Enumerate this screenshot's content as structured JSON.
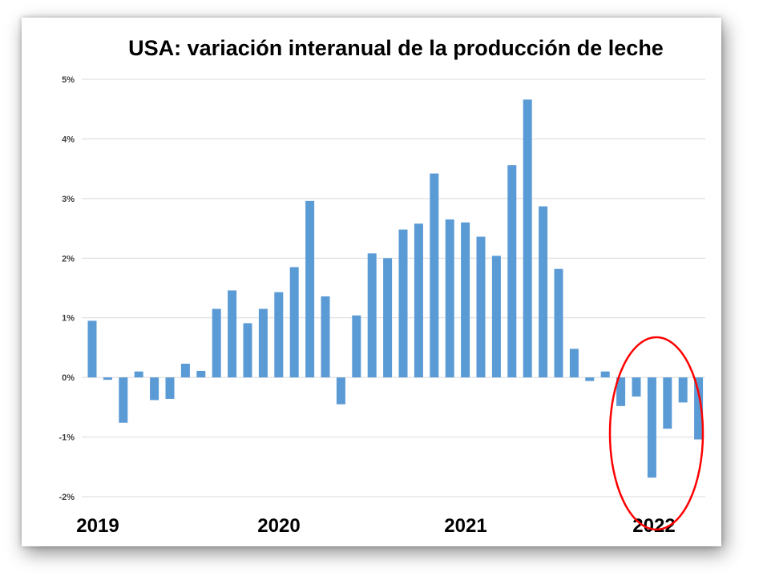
{
  "chart_data": {
    "type": "bar",
    "title": "USA: variación interanual de la producción de leche",
    "xlabel": "",
    "ylabel": "",
    "ylim": [
      -2,
      5
    ],
    "y_unit": "%",
    "y_ticks": [
      "5%",
      "4%",
      "3%",
      "2%",
      "1%",
      "0%",
      "-1%",
      "-2%"
    ],
    "y_tick_values": [
      5,
      4,
      3,
      2,
      1,
      0,
      -1,
      -2
    ],
    "x_year_labels": [
      "2019",
      "2020",
      "2021",
      "2022"
    ],
    "grid": true,
    "legend": "none",
    "bar_color": "#5b9bd5",
    "highlight": {
      "shape": "ellipse",
      "color": "#ff0000",
      "around": "2022"
    },
    "values": [
      0.95,
      -0.04,
      -0.76,
      0.1,
      -0.38,
      -0.36,
      0.23,
      0.11,
      1.15,
      1.46,
      0.91,
      1.15,
      1.43,
      1.85,
      2.96,
      1.36,
      -0.45,
      1.04,
      2.08,
      2.0,
      2.48,
      2.58,
      3.42,
      2.65,
      2.6,
      2.36,
      2.04,
      3.56,
      4.66,
      2.87,
      1.82,
      0.48,
      -0.06,
      0.1,
      -0.48,
      -0.32,
      -1.68,
      -0.86,
      -0.42,
      -1.04
    ]
  }
}
